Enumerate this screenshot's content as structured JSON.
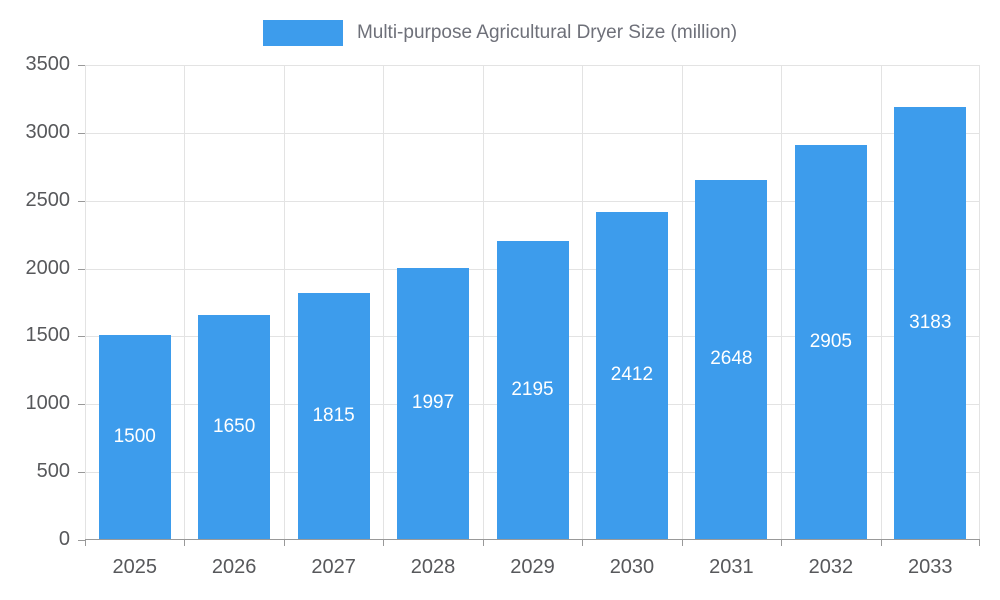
{
  "chart_data": {
    "type": "bar",
    "title": "Multi-purpose Agricultural Dryer Size (million)",
    "categories": [
      "2025",
      "2026",
      "2027",
      "2028",
      "2029",
      "2030",
      "2031",
      "2032",
      "2033"
    ],
    "values": [
      1500,
      1650,
      1815,
      1997,
      2195,
      2412,
      2648,
      2905,
      3183
    ],
    "series": [
      {
        "name": "Multi-purpose Agricultural Dryer Size (million)",
        "values": [
          1500,
          1650,
          1815,
          1997,
          2195,
          2412,
          2648,
          2905,
          3183
        ]
      }
    ],
    "xlabel": "",
    "ylabel": "",
    "ylim": [
      0,
      3500
    ],
    "ytick_step": 500,
    "ytick_labels": [
      "0",
      "500",
      "1000",
      "1500",
      "2000",
      "2500",
      "3000",
      "3500"
    ],
    "grid": true,
    "legend_position": "top",
    "value_labels": "inside-center",
    "colors": {
      "bar": "#3D9CEC",
      "bar_label_text": "#FFFFFF",
      "axis_text": "#57585B",
      "legend_text": "#6E7079",
      "grid_line": "#E3E3E3",
      "axis_line": "#999999",
      "tick_mark": "#999999",
      "background": "#FFFFFF"
    }
  }
}
